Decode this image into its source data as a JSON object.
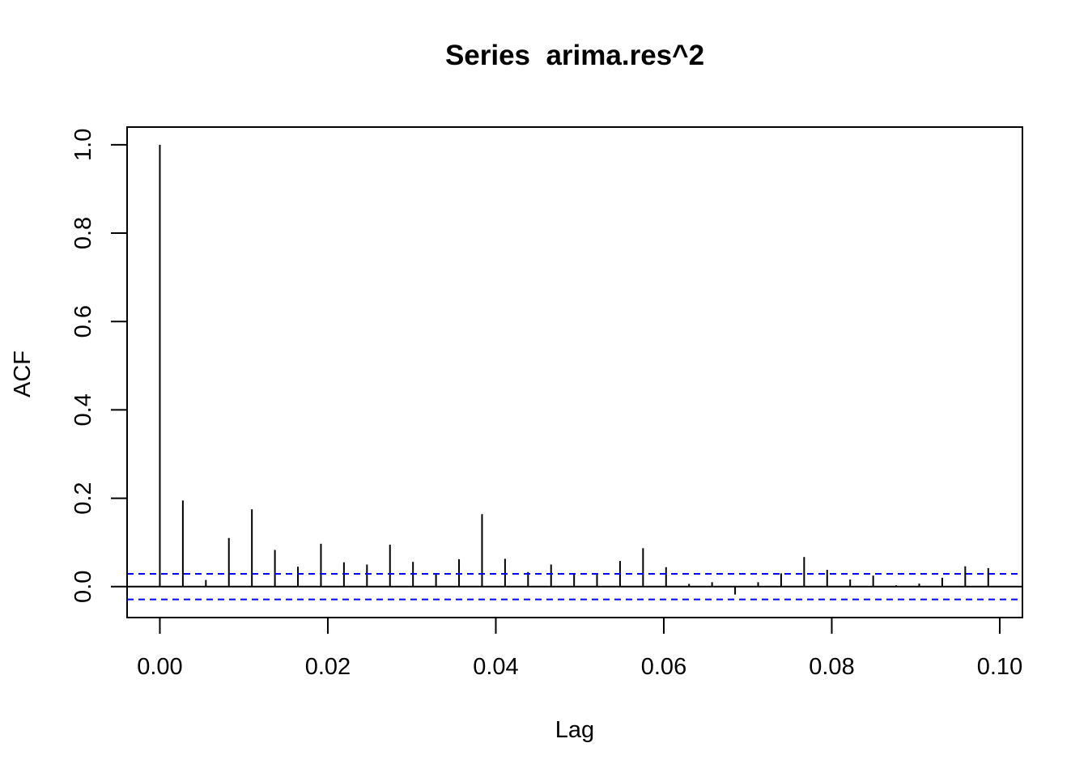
{
  "chart_data": {
    "type": "bar",
    "title": "Series  arima.res^2",
    "xlabel": "Lag",
    "ylabel": "ACF",
    "xlim": [
      -0.0039,
      0.1027
    ],
    "ylim": [
      -0.07,
      1.04
    ],
    "x_ticks": [
      "0.00",
      "0.02",
      "0.04",
      "0.06",
      "0.08",
      "0.10"
    ],
    "y_ticks": [
      "0.0",
      "0.2",
      "0.4",
      "0.6",
      "0.8",
      "1.0"
    ],
    "lags": [
      0.0,
      0.00274,
      0.00548,
      0.00822,
      0.01096,
      0.0137,
      0.01644,
      0.01918,
      0.02192,
      0.02466,
      0.0274,
      0.03014,
      0.03288,
      0.03562,
      0.03836,
      0.0411,
      0.04384,
      0.04658,
      0.04932,
      0.05205,
      0.05479,
      0.05753,
      0.06027,
      0.06301,
      0.06575,
      0.06849,
      0.07123,
      0.07397,
      0.07671,
      0.07945,
      0.08219,
      0.08493,
      0.08767,
      0.09041,
      0.09315,
      0.09589,
      0.09863
    ],
    "acf": [
      1.0,
      0.195,
      0.015,
      0.11,
      0.175,
      0.083,
      0.045,
      0.097,
      0.055,
      0.05,
      0.095,
      0.056,
      0.03,
      0.062,
      0.164,
      0.063,
      0.033,
      0.05,
      0.027,
      0.03,
      0.058,
      0.087,
      0.044,
      0.006,
      0.01,
      -0.018,
      0.01,
      0.03,
      0.067,
      0.038,
      0.016,
      0.025,
      0.003,
      0.007,
      0.02,
      0.046,
      0.042
    ],
    "confidence_limit": 0.029,
    "grid": false,
    "ci_color": "#0000ff",
    "bar_color": "#000000"
  }
}
